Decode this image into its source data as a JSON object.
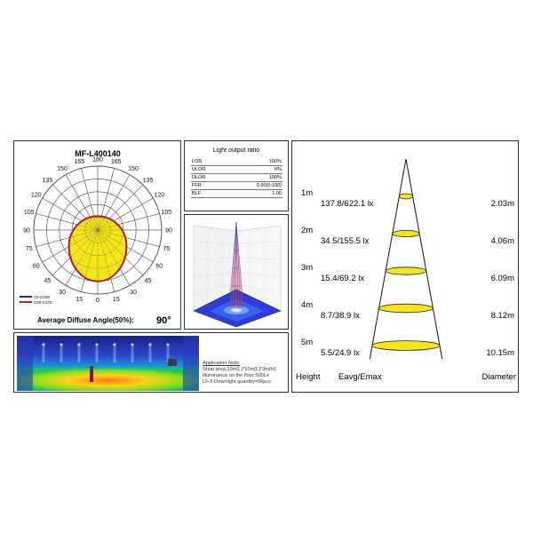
{
  "polar": {
    "model": "MF-L400140",
    "angles_top": [
      "165",
      "180",
      "165"
    ],
    "angles_left": [
      "150",
      "135",
      "120",
      "105",
      "90",
      "75",
      "60",
      "45",
      "30",
      "15"
    ],
    "angles_right": [
      "150",
      "135",
      "120",
      "105",
      "90",
      "75",
      "60",
      "45",
      "30",
      "15"
    ],
    "angle_bottom": "0",
    "legend": [
      {
        "label": "C0-C180",
        "color": "#1a2fa3"
      },
      {
        "label": "C90-C270",
        "color": "#e0121b"
      }
    ],
    "footer_label": "Average Diffuse Angle(50%):",
    "footer_value": "90°",
    "fill_color": "#f5e61a"
  },
  "light_output": {
    "title": "Light output ratio",
    "rows": [
      {
        "label": "LOR",
        "value": "100%"
      },
      {
        "label": "ULOR",
        "value": "0%"
      },
      {
        "label": "DLOR",
        "value": "100%"
      },
      {
        "label": "FFR",
        "value": "0.00(0:100)"
      },
      {
        "label": "BLF",
        "value": "1.00"
      }
    ]
  },
  "application": {
    "heading": "Application Note:",
    "lines": [
      "Shop area:10m(L)*10m(L)*3m(H)",
      "Illuminance on the floor:500Lx",
      "LF-5 Downlight quantity=56pcs"
    ]
  },
  "cone": {
    "rows": [
      {
        "height": "1m",
        "values": "137.8/622.1 lx",
        "diameter": "2.03m"
      },
      {
        "height": "2m",
        "values": "34.5/155.5 lx",
        "diameter": "4.06m"
      },
      {
        "height": "3m",
        "values": "15.4/69.2 lx",
        "diameter": "6.09m"
      },
      {
        "height": "4m",
        "values": "8.7/38.9 lx",
        "diameter": "8.12m"
      },
      {
        "height": "5m",
        "values": "5.5/24.9 lx",
        "diameter": "10.15m"
      }
    ],
    "footer": {
      "height": "Height",
      "values": "Eavg/Emax",
      "diameter": "Diameter"
    },
    "ellipse_fill": "#f5e61a"
  }
}
